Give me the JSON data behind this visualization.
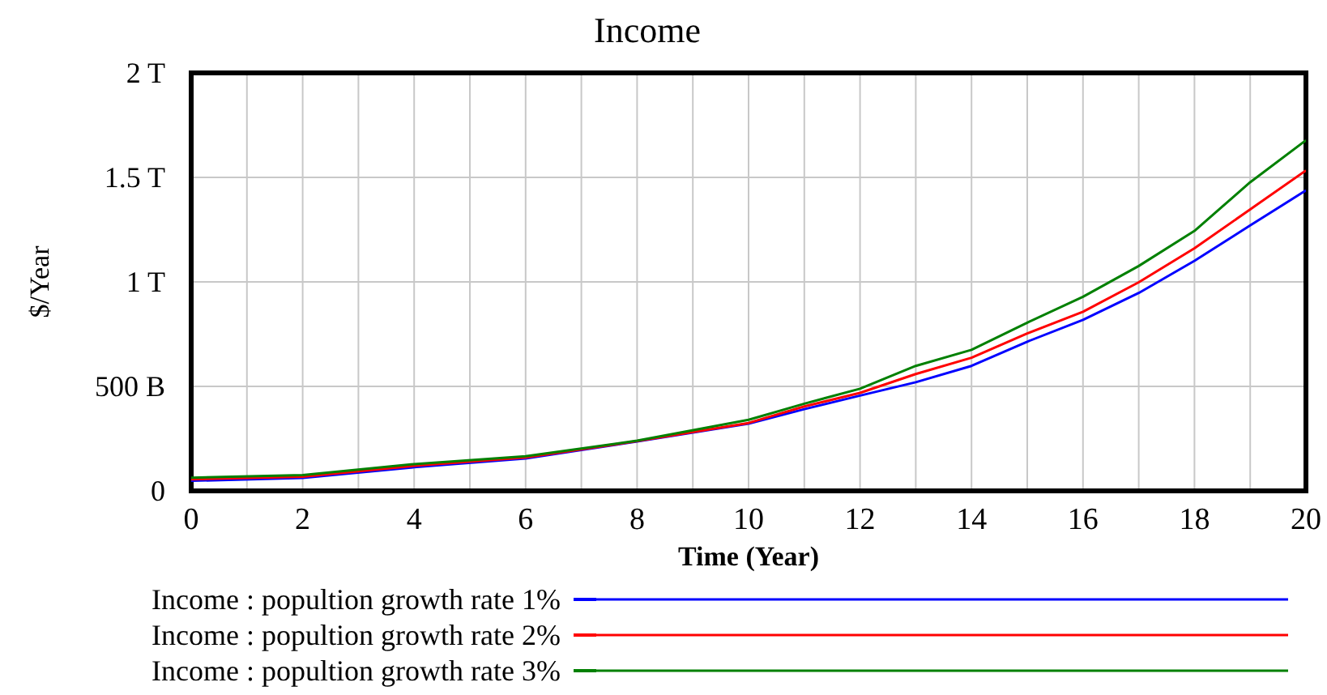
{
  "chart_data": {
    "type": "line",
    "title": "Income",
    "xlabel": "Time (Year)",
    "ylabel": "$/Year",
    "x": [
      0,
      2,
      4,
      6,
      8,
      10,
      11,
      12,
      13,
      14,
      15,
      16,
      17,
      18,
      19,
      20
    ],
    "series": [
      {
        "name": "Income : popultion growth rate 1%",
        "color": "#0000ff",
        "values": [
          48000000000,
          62000000000,
          113000000000,
          155000000000,
          236000000000,
          322000000000,
          391000000000,
          456000000000,
          520000000000,
          598000000000,
          714000000000,
          818000000000,
          947000000000,
          1101000000000,
          1270000000000,
          1438000000000
        ]
      },
      {
        "name": "Income : popultion growth rate 2%",
        "color": "#ff0000",
        "values": [
          55000000000,
          68000000000,
          120000000000,
          160000000000,
          238000000000,
          325000000000,
          404000000000,
          469000000000,
          559000000000,
          637000000000,
          753000000000,
          857000000000,
          998000000000,
          1161000000000,
          1347000000000,
          1533000000000
        ]
      },
      {
        "name": "Income : popultion growth rate 3%",
        "color": "#008000",
        "values": [
          63000000000,
          76000000000,
          128000000000,
          166000000000,
          240000000000,
          340000000000,
          417000000000,
          489000000000,
          598000000000,
          675000000000,
          805000000000,
          929000000000,
          1076000000000,
          1244000000000,
          1477000000000,
          1678000000000
        ]
      }
    ],
    "xlim": [
      0,
      20
    ],
    "xticks": [
      0,
      {
        "value": 1,
        "label": null
      },
      2,
      {
        "value": 3,
        "label": null
      },
      4,
      {
        "value": 5,
        "label": null
      },
      6,
      {
        "value": 7,
        "label": null
      },
      8,
      {
        "value": 9,
        "label": null
      },
      10,
      {
        "value": 11,
        "label": null
      },
      12,
      {
        "value": 13,
        "label": null
      },
      14,
      {
        "value": 15,
        "label": null
      },
      16,
      {
        "value": 17,
        "label": null
      },
      18,
      {
        "value": 19,
        "label": null
      },
      20
    ],
    "ylim": [
      0,
      2000000000000
    ],
    "yticks": [
      0,
      {
        "value": 500000000000,
        "label": "500 B"
      },
      {
        "value": 1000000000000,
        "label": "1 T"
      },
      {
        "value": 1500000000000,
        "label": "1.5 T"
      },
      {
        "value": 2000000000000,
        "label": "2 T"
      }
    ],
    "grid": true,
    "legend": "bottom",
    "marker": "none",
    "line_style": "solid"
  }
}
